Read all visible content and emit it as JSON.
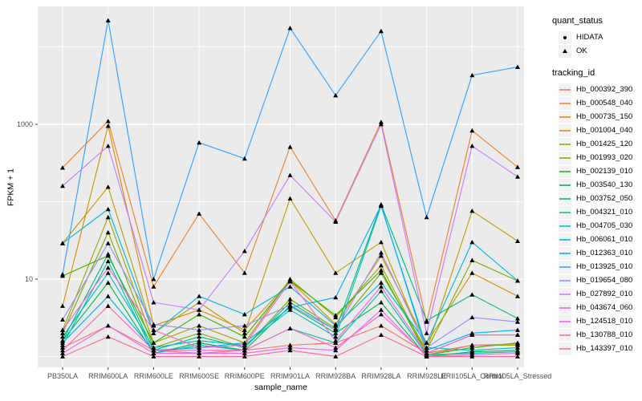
{
  "colors": {
    "panel_bg": "#EBEBEB",
    "gridline": "#FFFFFF",
    "tick_label": "#4D4D4D",
    "axis_title": "#000000",
    "tick_mark": "#333333",
    "point_marker": "#000000",
    "legend_key_bg": "#F2F2F2"
  },
  "legend_quant_status": {
    "title": "quant_status",
    "items": [
      {
        "label": "HIDATA",
        "marker": "circle"
      },
      {
        "label": "OK",
        "marker": "triangle"
      }
    ]
  },
  "legend_tracking": {
    "title": "tracking_id"
  },
  "chart_data": {
    "type": "line",
    "title": "",
    "xlabel": "sample_name",
    "ylabel": "FPKM + 1",
    "y_scale": "log10",
    "y_axis_ticks": [
      10,
      1000
    ],
    "y_gridline_values": [
      1,
      10,
      100,
      1000,
      10000
    ],
    "ylim": [
      0.72,
      30000
    ],
    "grid": "on",
    "legend_position": "right",
    "point_marker_shape": "black triangle (quant_status OK)",
    "categories": [
      "PB350LA",
      "RRIM600LA",
      "RRIM600LE",
      "RRIM600SE",
      "RRIM600PE",
      "RRIM901LA",
      "RRIM928BA",
      "RRIM928LA",
      "RRIM928LE",
      "RRII105LA_Control",
      "RRII105LA_Stressed"
    ],
    "series": [
      {
        "name": "Hb_000392_390",
        "color": "#F8766D",
        "values": [
          1.3,
          2.5,
          1.2,
          1.1,
          1.2,
          1.4,
          1.5,
          2.5,
          1.1,
          1.9,
          1.9
        ]
      },
      {
        "name": "Hb_000548_040",
        "color": "#EA8331",
        "values": [
          275,
          1100,
          8,
          70,
          12,
          510,
          57,
          1070,
          2.8,
          830,
          280
        ]
      },
      {
        "name": "Hb_000735_150",
        "color": "#D89000",
        "values": [
          4.5,
          950,
          2.5,
          4.0,
          2.2,
          9.5,
          2.6,
          20,
          1.5,
          12,
          6
        ]
      },
      {
        "name": "Hb_001004_040",
        "color": "#C09B00",
        "values": [
          29,
          155,
          2.0,
          5.0,
          2.0,
          110,
          12,
          30,
          1.2,
          76,
          31
        ]
      },
      {
        "name": "Hb_001425_120",
        "color": "#A3A500",
        "values": [
          2.2,
          63,
          1.5,
          2.5,
          1.5,
          10,
          3.2,
          15,
          1.1,
          1.4,
          1.4
        ]
      },
      {
        "name": "Hb_001993_020",
        "color": "#7CAE00",
        "values": [
          2.0,
          40,
          1.3,
          2.0,
          1.3,
          5.5,
          2.3,
          12,
          1.2,
          17.5,
          9.5
        ]
      },
      {
        "name": "Hb_002139_010",
        "color": "#39B600",
        "values": [
          11,
          20,
          1.5,
          3.5,
          1.8,
          9.5,
          3.4,
          13,
          1.05,
          1.3,
          1.5
        ]
      },
      {
        "name": "Hb_003540_130",
        "color": "#00BB4E",
        "values": [
          1.6,
          9,
          1.1,
          1.5,
          1.2,
          4.5,
          2.0,
          5,
          1.0,
          1.15,
          1.2
        ]
      },
      {
        "name": "Hb_003752_050",
        "color": "#00BF7D",
        "values": [
          1.6,
          21,
          1.2,
          1.8,
          1.3,
          5.0,
          2.2,
          92,
          2.9,
          6.3,
          3.1
        ]
      },
      {
        "name": "Hb_004321_010",
        "color": "#00C1A3",
        "values": [
          1.4,
          17,
          1.1,
          1.4,
          1.2,
          2.3,
          1.5,
          7,
          1.05,
          1.1,
          1.15
        ]
      },
      {
        "name": "Hb_004705_030",
        "color": "#00BFC4",
        "values": [
          1.8,
          12,
          1.3,
          1.6,
          1.4,
          4.0,
          1.8,
          88,
          1.3,
          1.2,
          1.3
        ]
      },
      {
        "name": "Hb_006061_010",
        "color": "#00BAE0",
        "values": [
          29,
          80,
          2.0,
          6.0,
          3.5,
          8.0,
          2.5,
          9,
          1.5,
          30,
          9.5
        ]
      },
      {
        "name": "Hb_012363_010",
        "color": "#00B0F6",
        "values": [
          1.5,
          6,
          1.2,
          1.3,
          1.5,
          4.3,
          5.8,
          90,
          1.2,
          2.0,
          2.2
        ]
      },
      {
        "name": "Hb_013925_010",
        "color": "#35A2FF",
        "values": [
          11.5,
          22000,
          10,
          580,
          360,
          17500,
          2360,
          16000,
          63,
          4300,
          5500
        ]
      },
      {
        "name": "Hb_019654_080",
        "color": "#9590FF",
        "values": [
          3.0,
          29,
          2.6,
          2.2,
          2.5,
          4.6,
          2.2,
          22,
          1.3,
          3.2,
          2.8
        ]
      },
      {
        "name": "Hb_027892_010",
        "color": "#C77CFF",
        "values": [
          160,
          525,
          5.0,
          4.0,
          23,
          220,
          55,
          1000,
          2.0,
          525,
          210
        ]
      },
      {
        "name": "Hb_043674_060",
        "color": "#E76BF3",
        "values": [
          1.1,
          2.5,
          1.1,
          1.1,
          1.1,
          1.3,
          1.2,
          4,
          1.0,
          1.05,
          1.1
        ]
      },
      {
        "name": "Hb_124518_010",
        "color": "#FA62DB",
        "values": [
          2.2,
          14,
          2.2,
          1.3,
          1.4,
          9.3,
          1.6,
          8,
          1.1,
          1.9,
          1.9
        ]
      },
      {
        "name": "Hb_130788_010",
        "color": "#FF62BC",
        "values": [
          1.2,
          4.5,
          1.2,
          1.2,
          1.2,
          2.3,
          1.3,
          3.5,
          1.05,
          1.4,
          1.45
        ]
      },
      {
        "name": "Hb_143397_010",
        "color": "#FF6A98",
        "values": [
          1.0,
          1.8,
          1.0,
          1.0,
          1.0,
          1.2,
          1.0,
          1.9,
          1.0,
          1.0,
          1.0
        ]
      }
    ]
  }
}
